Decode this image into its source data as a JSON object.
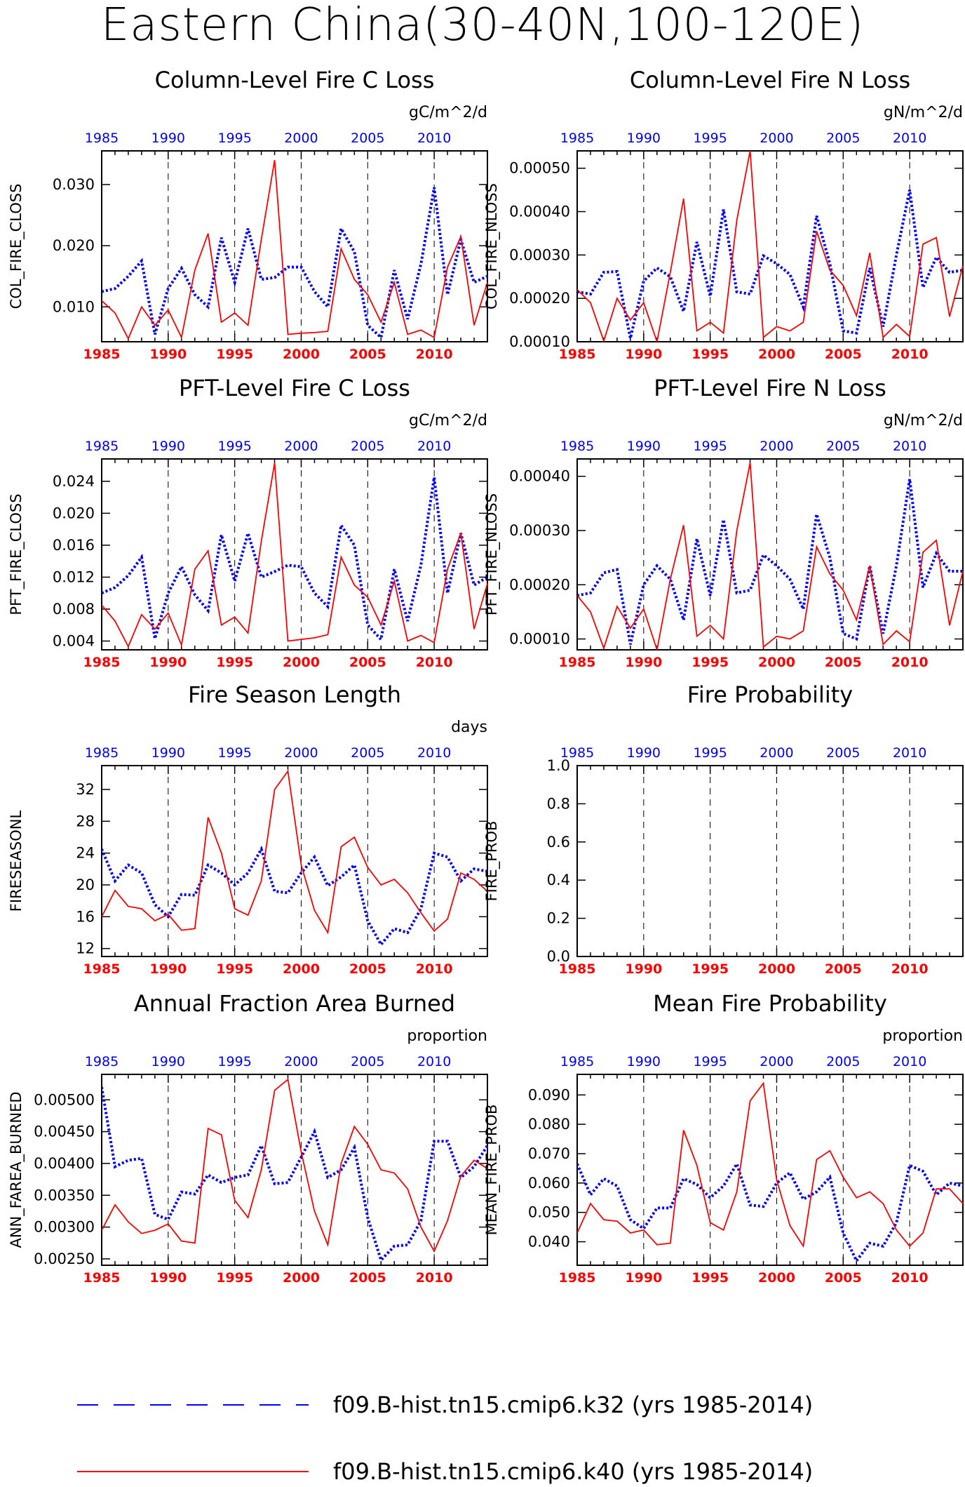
{
  "page_title": "Eastern China(30-40N,100-120E)",
  "legend": [
    {
      "label": "f09.B-hist.tn15.cmip6.k32 (yrs 1985-2014)",
      "color": "#0000ff",
      "style": "dashed"
    },
    {
      "label": "f09.B-hist.tn15.cmip6.k40 (yrs 1985-2014)",
      "color": "#ff0000",
      "style": "solid"
    }
  ],
  "chart_data": [
    {
      "type": "line",
      "title": "Column-Level Fire C Loss",
      "units": "gC/m^2/d",
      "ylabel": "COL_FIRE_CLOSS",
      "x": [
        1985,
        1986,
        1987,
        1988,
        1989,
        1990,
        1991,
        1992,
        1993,
        1994,
        1995,
        1996,
        1997,
        1998,
        1999,
        2000,
        2001,
        2002,
        2003,
        2004,
        2005,
        2006,
        2007,
        2008,
        2009,
        2010,
        2011,
        2012,
        2013,
        2014
      ],
      "xlim": [
        1985,
        2014
      ],
      "xticks": [
        "1985",
        "1990",
        "1995",
        "2000",
        "2005",
        "2010"
      ],
      "ylim": [
        0.0043,
        0.0355
      ],
      "yticks": [
        "0.010",
        "0.020",
        "0.030"
      ],
      "ytick_values": [
        0.01,
        0.02,
        0.03
      ],
      "series": [
        {
          "name": "f09.B-hist.tn15.cmip6.k32 (yrs 1985-2014)",
          "color": "#0000ff",
          "style": "dotted",
          "values": [
            0.0125,
            0.013,
            0.015,
            0.0175,
            0.0055,
            0.013,
            0.0163,
            0.012,
            0.01,
            0.0213,
            0.014,
            0.0228,
            0.0145,
            0.0148,
            0.0165,
            0.0165,
            0.0125,
            0.01,
            0.0228,
            0.019,
            0.007,
            0.005,
            0.016,
            0.008,
            0.017,
            0.0295,
            0.012,
            0.021,
            0.014,
            0.015
          ]
        },
        {
          "name": "f09.B-hist.tn15.cmip6.k40 (yrs 1985-2014)",
          "color": "#ff0000",
          "style": "solid",
          "values": [
            0.011,
            0.009,
            0.0048,
            0.01,
            0.007,
            0.0095,
            0.005,
            0.016,
            0.022,
            0.0075,
            0.009,
            0.007,
            0.021,
            0.034,
            0.0055,
            0.0057,
            0.0058,
            0.006,
            0.0195,
            0.0145,
            0.012,
            0.0075,
            0.014,
            0.0055,
            0.0062,
            0.005,
            0.0165,
            0.0215,
            0.007,
            0.014
          ]
        }
      ]
    },
    {
      "type": "line",
      "title": "Column-Level Fire N Loss",
      "units": "gN/m^2/d",
      "ylabel": "COL_FIRE_NLOSS",
      "x": [
        1985,
        1986,
        1987,
        1988,
        1989,
        1990,
        1991,
        1992,
        1993,
        1994,
        1995,
        1996,
        1997,
        1998,
        1999,
        2000,
        2001,
        2002,
        2003,
        2004,
        2005,
        2006,
        2007,
        2008,
        2009,
        2010,
        2011,
        2012,
        2013,
        2014
      ],
      "xlim": [
        1985,
        2014
      ],
      "xticks": [
        "1985",
        "1990",
        "1995",
        "2000",
        "2005",
        "2010"
      ],
      "ylim": [
        0.0001,
        0.00054
      ],
      "yticks": [
        "0.00010",
        "0.00020",
        "0.00030",
        "0.00040",
        "0.00050"
      ],
      "ytick_values": [
        0.0001,
        0.0002,
        0.0003,
        0.0004,
        0.0005
      ],
      "series": [
        {
          "name": "f09.B-hist.tn15.cmip6.k32 (yrs 1985-2014)",
          "color": "#0000ff",
          "style": "dotted",
          "values": [
            0.000215,
            0.00021,
            0.00026,
            0.000262,
            0.000108,
            0.00024,
            0.00027,
            0.00025,
            0.00017,
            0.00033,
            0.000205,
            0.000405,
            0.000215,
            0.00021,
            0.000298,
            0.00028,
            0.000255,
            0.00018,
            0.00039,
            0.00028,
            0.000125,
            0.00012,
            0.00027,
            0.000135,
            0.0003,
            0.00045,
            0.000225,
            0.000295,
            0.00026,
            0.000265
          ]
        },
        {
          "name": "f09.B-hist.tn15.cmip6.k40 (yrs 1985-2014)",
          "color": "#ff0000",
          "style": "solid",
          "values": [
            0.00022,
            0.00019,
            0.000102,
            0.0002,
            0.00015,
            0.00019,
            0.0001,
            0.00026,
            0.00043,
            0.000125,
            0.000145,
            0.00012,
            0.00038,
            0.00054,
            0.00011,
            0.000135,
            0.000125,
            0.000145,
            0.000355,
            0.000265,
            0.00023,
            0.00016,
            0.000305,
            0.00011,
            0.00014,
            0.000112,
            0.000325,
            0.00034,
            0.000158,
            0.000275
          ]
        }
      ]
    },
    {
      "type": "line",
      "title": "PFT-Level Fire C Loss",
      "units": "gC/m^2/d",
      "ylabel": "PFT_FIRE_CLOSS",
      "x": [
        1985,
        1986,
        1987,
        1988,
        1989,
        1990,
        1991,
        1992,
        1993,
        1994,
        1995,
        1996,
        1997,
        1998,
        1999,
        2000,
        2001,
        2002,
        2003,
        2004,
        2005,
        2006,
        2007,
        2008,
        2009,
        2010,
        2011,
        2012,
        2013,
        2014
      ],
      "xlim": [
        1985,
        2014
      ],
      "xticks": [
        "1985",
        "1990",
        "1995",
        "2000",
        "2005",
        "2010"
      ],
      "ylim": [
        0.0029,
        0.0268
      ],
      "yticks": [
        "0.004",
        "0.008",
        "0.012",
        "0.016",
        "0.020",
        "0.024"
      ],
      "ytick_values": [
        0.004,
        0.008,
        0.012,
        0.016,
        0.02,
        0.024
      ],
      "series": [
        {
          "name": "f09.B-hist.tn15.cmip6.k32 (yrs 1985-2014)",
          "color": "#0000ff",
          "style": "dotted",
          "values": [
            0.01,
            0.0107,
            0.0122,
            0.0145,
            0.0043,
            0.01,
            0.0133,
            0.0098,
            0.0078,
            0.0173,
            0.0115,
            0.0175,
            0.012,
            0.0127,
            0.0135,
            0.0133,
            0.01,
            0.0083,
            0.0185,
            0.016,
            0.006,
            0.0042,
            0.013,
            0.0065,
            0.0135,
            0.0245,
            0.01,
            0.0175,
            0.011,
            0.012
          ]
        },
        {
          "name": "f09.B-hist.tn15.cmip6.k40 (yrs 1985-2014)",
          "color": "#ff0000",
          "style": "solid",
          "values": [
            0.0085,
            0.0065,
            0.0033,
            0.0073,
            0.0055,
            0.0075,
            0.0035,
            0.013,
            0.0153,
            0.006,
            0.007,
            0.005,
            0.0165,
            0.0263,
            0.004,
            0.0042,
            0.0044,
            0.0048,
            0.0145,
            0.011,
            0.0095,
            0.006,
            0.0115,
            0.004,
            0.0047,
            0.0038,
            0.013,
            0.0175,
            0.0055,
            0.0112
          ]
        }
      ]
    },
    {
      "type": "line",
      "title": "PFT-Level Fire N Loss",
      "units": "gN/m^2/d",
      "ylabel": "PFT_FIRE_NLOSS",
      "x": [
        1985,
        1986,
        1987,
        1988,
        1989,
        1990,
        1991,
        1992,
        1993,
        1994,
        1995,
        1996,
        1997,
        1998,
        1999,
        2000,
        2001,
        2002,
        2003,
        2004,
        2005,
        2006,
        2007,
        2008,
        2009,
        2010,
        2011,
        2012,
        2013,
        2014
      ],
      "xlim": [
        1985,
        2014
      ],
      "xticks": [
        "1985",
        "1990",
        "1995",
        "2000",
        "2005",
        "2010"
      ],
      "ylim": [
        8e-05,
        0.000432
      ],
      "yticks": [
        "0.00010",
        "0.00020",
        "0.00030",
        "0.00040"
      ],
      "ytick_values": [
        0.0001,
        0.0002,
        0.0003,
        0.0004
      ],
      "series": [
        {
          "name": "f09.B-hist.tn15.cmip6.k32 (yrs 1985-2014)",
          "color": "#0000ff",
          "style": "dotted",
          "values": [
            0.00018,
            0.000185,
            0.000222,
            0.000228,
            9e-05,
            0.0002,
            0.000235,
            0.00021,
            0.000135,
            0.000285,
            0.00018,
            0.00032,
            0.000185,
            0.00019,
            0.000255,
            0.000235,
            0.00021,
            0.000155,
            0.00033,
            0.00025,
            0.00011,
            0.0001,
            0.000235,
            0.00011,
            0.000235,
            0.000395,
            0.000195,
            0.000258,
            0.000225,
            0.000225
          ]
        },
        {
          "name": "f09.B-hist.tn15.cmip6.k40 (yrs 1985-2014)",
          "color": "#ff0000",
          "style": "solid",
          "values": [
            0.00018,
            0.00015,
            8.3e-05,
            0.00016,
            0.00012,
            0.000155,
            8e-05,
            0.00021,
            0.00031,
            0.000105,
            0.000125,
            0.0001,
            0.0003,
            0.000425,
            8.5e-05,
            0.000105,
            0.0001,
            0.000115,
            0.00027,
            0.00022,
            0.00019,
            0.000135,
            0.000235,
            9e-05,
            0.000115,
            9.5e-05,
            0.00026,
            0.000282,
            0.000125,
            0.000225
          ]
        }
      ]
    },
    {
      "type": "line",
      "title": "Fire Season Length",
      "units": "days",
      "ylabel": "FIRESEASONL",
      "x": [
        1985,
        1986,
        1987,
        1988,
        1989,
        1990,
        1991,
        1992,
        1993,
        1994,
        1995,
        1996,
        1997,
        1998,
        1999,
        2000,
        2001,
        2002,
        2003,
        2004,
        2005,
        2006,
        2007,
        2008,
        2009,
        2010,
        2011,
        2012,
        2013,
        2014
      ],
      "xlim": [
        1985,
        2014
      ],
      "xticks": [
        "1985",
        "1990",
        "1995",
        "2000",
        "2005",
        "2010"
      ],
      "ylim": [
        11,
        35
      ],
      "yticks": [
        "12",
        "16",
        "20",
        "24",
        "28",
        "32"
      ],
      "ytick_values": [
        12,
        16,
        20,
        24,
        28,
        32
      ],
      "series": [
        {
          "name": "f09.B-hist.tn15.cmip6.k32 (yrs 1985-2014)",
          "color": "#0000ff",
          "style": "dotted",
          "values": [
            24.5,
            20.5,
            22.5,
            21.5,
            17.5,
            16.0,
            18.8,
            18.7,
            22.5,
            21.5,
            20.0,
            21.5,
            24.5,
            19.2,
            19.0,
            21.5,
            23.5,
            19.9,
            21.0,
            22.5,
            15.5,
            12.5,
            14.5,
            14.0,
            17.0,
            24.0,
            23.5,
            20.5,
            22.0,
            21.7
          ]
        },
        {
          "name": "f09.B-hist.tn15.cmip6.k40 (yrs 1985-2014)",
          "color": "#ff0000",
          "style": "solid",
          "values": [
            16.0,
            19.3,
            17.3,
            17.0,
            15.5,
            16.3,
            14.3,
            14.5,
            28.5,
            24.0,
            17.0,
            16.2,
            20.5,
            32.0,
            34.3,
            22.5,
            16.8,
            14.0,
            24.8,
            26.0,
            22.2,
            20.0,
            20.7,
            19.0,
            16.5,
            14.2,
            15.7,
            21.5,
            20.7,
            19.2
          ]
        }
      ]
    },
    {
      "type": "line",
      "title": "Fire Probability",
      "units": "",
      "ylabel": "FIRE_PROB",
      "x": [
        1985,
        1986,
        1987,
        1988,
        1989,
        1990,
        1991,
        1992,
        1993,
        1994,
        1995,
        1996,
        1997,
        1998,
        1999,
        2000,
        2001,
        2002,
        2003,
        2004,
        2005,
        2006,
        2007,
        2008,
        2009,
        2010,
        2011,
        2012,
        2013,
        2014
      ],
      "xlim": [
        1985,
        2014
      ],
      "xticks": [
        "1985",
        "1990",
        "1995",
        "2000",
        "2005",
        "2010"
      ],
      "ylim": [
        0,
        1
      ],
      "yticks": [
        "0.0",
        "0.2",
        "0.4",
        "0.6",
        "0.8",
        "1.0"
      ],
      "ytick_values": [
        0,
        0.2,
        0.4,
        0.6,
        0.8,
        1.0
      ],
      "series": []
    },
    {
      "type": "line",
      "title": "Annual Fraction Area Burned",
      "units": "proportion",
      "ylabel": "ANN_FAREA_BURNED",
      "x": [
        1985,
        1986,
        1987,
        1988,
        1989,
        1990,
        1991,
        1992,
        1993,
        1994,
        1995,
        1996,
        1997,
        1998,
        1999,
        2000,
        2001,
        2002,
        2003,
        2004,
        2005,
        2006,
        2007,
        2008,
        2009,
        2010,
        2011,
        2012,
        2013,
        2014
      ],
      "xlim": [
        1985,
        2014
      ],
      "xticks": [
        "1985",
        "1990",
        "1995",
        "2000",
        "2005",
        "2010"
      ],
      "ylim": [
        0.0024,
        0.0054
      ],
      "yticks": [
        "0.00250",
        "0.00300",
        "0.00350",
        "0.00400",
        "0.00450",
        "0.00500"
      ],
      "ytick_values": [
        0.0025,
        0.003,
        0.0035,
        0.004,
        0.0045,
        0.005
      ],
      "series": [
        {
          "name": "f09.B-hist.tn15.cmip6.k32 (yrs 1985-2014)",
          "color": "#0000ff",
          "style": "dotted",
          "values": [
            0.0052,
            0.00395,
            0.00405,
            0.00408,
            0.0032,
            0.00312,
            0.00355,
            0.00352,
            0.00382,
            0.0037,
            0.00378,
            0.00382,
            0.00428,
            0.00368,
            0.0037,
            0.0041,
            0.0045,
            0.00378,
            0.0039,
            0.00425,
            0.00315,
            0.00248,
            0.0027,
            0.00272,
            0.0031,
            0.00435,
            0.00435,
            0.00378,
            0.00395,
            0.00428
          ]
        },
        {
          "name": "f09.B-hist.tn15.cmip6.k40 (yrs 1985-2014)",
          "color": "#ff0000",
          "style": "solid",
          "values": [
            0.00295,
            0.00335,
            0.00308,
            0.0029,
            0.00295,
            0.00305,
            0.00278,
            0.00275,
            0.00455,
            0.00445,
            0.00342,
            0.00315,
            0.0039,
            0.00515,
            0.00532,
            0.00418,
            0.00325,
            0.00272,
            0.004,
            0.00458,
            0.0043,
            0.0039,
            0.00385,
            0.0036,
            0.003,
            0.00262,
            0.0031,
            0.0038,
            0.00405,
            0.00392
          ]
        }
      ]
    },
    {
      "type": "line",
      "title": "Mean Fire Probability",
      "units": "proportion",
      "ylabel": "MEAN_FIRE_PROB",
      "x": [
        1985,
        1986,
        1987,
        1988,
        1989,
        1990,
        1991,
        1992,
        1993,
        1994,
        1995,
        1996,
        1997,
        1998,
        1999,
        2000,
        2001,
        2002,
        2003,
        2004,
        2005,
        2006,
        2007,
        2008,
        2009,
        2010,
        2011,
        2012,
        2013,
        2014
      ],
      "xlim": [
        1985,
        2014
      ],
      "xticks": [
        "1985",
        "1990",
        "1995",
        "2000",
        "2005",
        "2010"
      ],
      "ylim": [
        0.032,
        0.097
      ],
      "yticks": [
        "0.040",
        "0.050",
        "0.060",
        "0.070",
        "0.080",
        "0.090"
      ],
      "ytick_values": [
        0.04,
        0.05,
        0.06,
        0.07,
        0.08,
        0.09
      ],
      "series": [
        {
          "name": "f09.B-hist.tn15.cmip6.k32 (yrs 1985-2014)",
          "color": "#0000ff",
          "style": "dotted",
          "values": [
            0.0665,
            0.056,
            0.0615,
            0.059,
            0.0475,
            0.0445,
            0.0515,
            0.0515,
            0.0615,
            0.0595,
            0.055,
            0.059,
            0.0665,
            0.0525,
            0.052,
            0.06,
            0.0635,
            0.0545,
            0.057,
            0.062,
            0.043,
            0.0335,
            0.0395,
            0.0385,
            0.0465,
            0.066,
            0.064,
            0.056,
            0.06,
            0.059
          ]
        },
        {
          "name": "f09.B-hist.tn15.cmip6.k40 (yrs 1985-2014)",
          "color": "#ff0000",
          "style": "solid",
          "values": [
            0.043,
            0.053,
            0.0475,
            0.047,
            0.043,
            0.044,
            0.039,
            0.0395,
            0.078,
            0.066,
            0.0465,
            0.044,
            0.057,
            0.088,
            0.094,
            0.061,
            0.0455,
            0.0385,
            0.068,
            0.071,
            0.062,
            0.055,
            0.057,
            0.053,
            0.044,
            0.0385,
            0.043,
            0.058,
            0.058,
            0.053
          ]
        }
      ]
    }
  ]
}
